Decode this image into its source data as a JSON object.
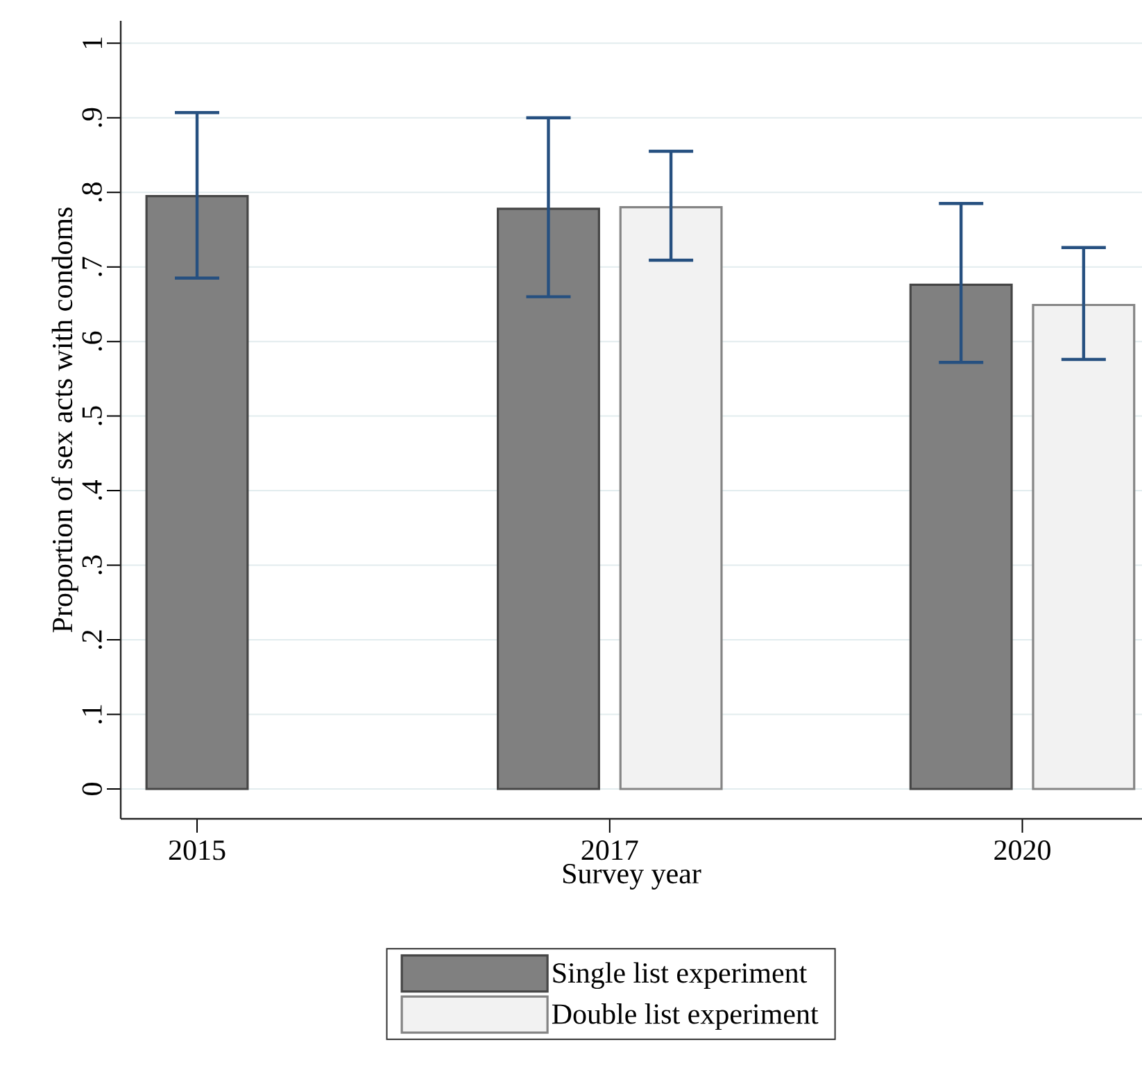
{
  "chart_data": {
    "type": "bar",
    "xlabel": "Survey year",
    "ylabel": "Proportion of sex acts with condoms",
    "categories": [
      "2015",
      "2017",
      "2020"
    ],
    "series": [
      {
        "name": "Single list experiment",
        "color": "#808080",
        "values": [
          0.795,
          0.778,
          0.676
        ],
        "errors": [
          [
            0.685,
            0.907
          ],
          [
            0.66,
            0.9
          ],
          [
            0.572,
            0.785
          ]
        ]
      },
      {
        "name": "Double list experiment",
        "color": "#f2f2f2",
        "values": [
          null,
          0.78,
          0.649
        ],
        "errors": [
          null,
          [
            0.709,
            0.855
          ],
          [
            0.576,
            0.726
          ]
        ]
      }
    ],
    "ylim": [
      -0.04,
      1.03
    ],
    "yticks": [
      0,
      {
        "value": 0.1,
        "label": ".1"
      },
      {
        "value": 0.2,
        "label": ".2"
      },
      {
        "value": 0.3,
        "label": ".3"
      },
      {
        "value": 0.4,
        "label": ".4"
      },
      {
        "value": 0.5,
        "label": ".5"
      },
      {
        "value": 0.6,
        "label": ".6"
      },
      {
        "value": 0.7,
        "label": ".7"
      },
      {
        "value": 0.8,
        "label": ".8"
      },
      {
        "value": 0.9,
        "label": ".9"
      },
      1
    ],
    "grid": "y",
    "legend": "bottom"
  }
}
